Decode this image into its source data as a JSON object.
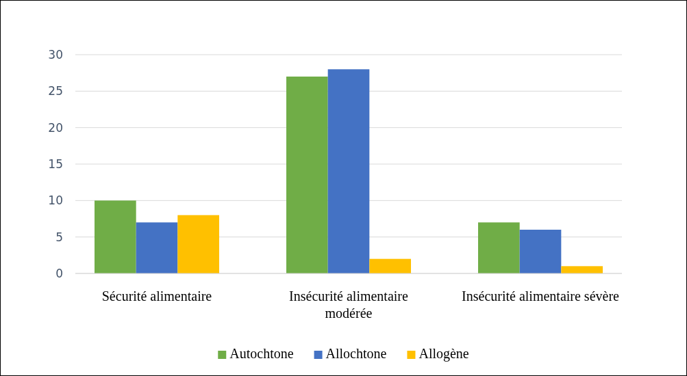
{
  "chart_data": {
    "type": "bar",
    "categories": [
      "Sécurité alimentaire",
      "Insécurité alimentaire modérée",
      "Insécurité alimentaire sévère"
    ],
    "series": [
      {
        "name": "Autochtone",
        "color": "#70ad47",
        "values": [
          10,
          27,
          7
        ]
      },
      {
        "name": "Allochtone",
        "color": "#4472c4",
        "values": [
          7,
          28,
          6
        ]
      },
      {
        "name": "Allogène",
        "color": "#ffc000",
        "values": [
          8,
          2,
          1
        ]
      }
    ],
    "ylim": [
      0,
      30
    ],
    "yticks": [
      0,
      5,
      10,
      15,
      20,
      25,
      30
    ],
    "grid": "y",
    "legend": "bottom"
  }
}
